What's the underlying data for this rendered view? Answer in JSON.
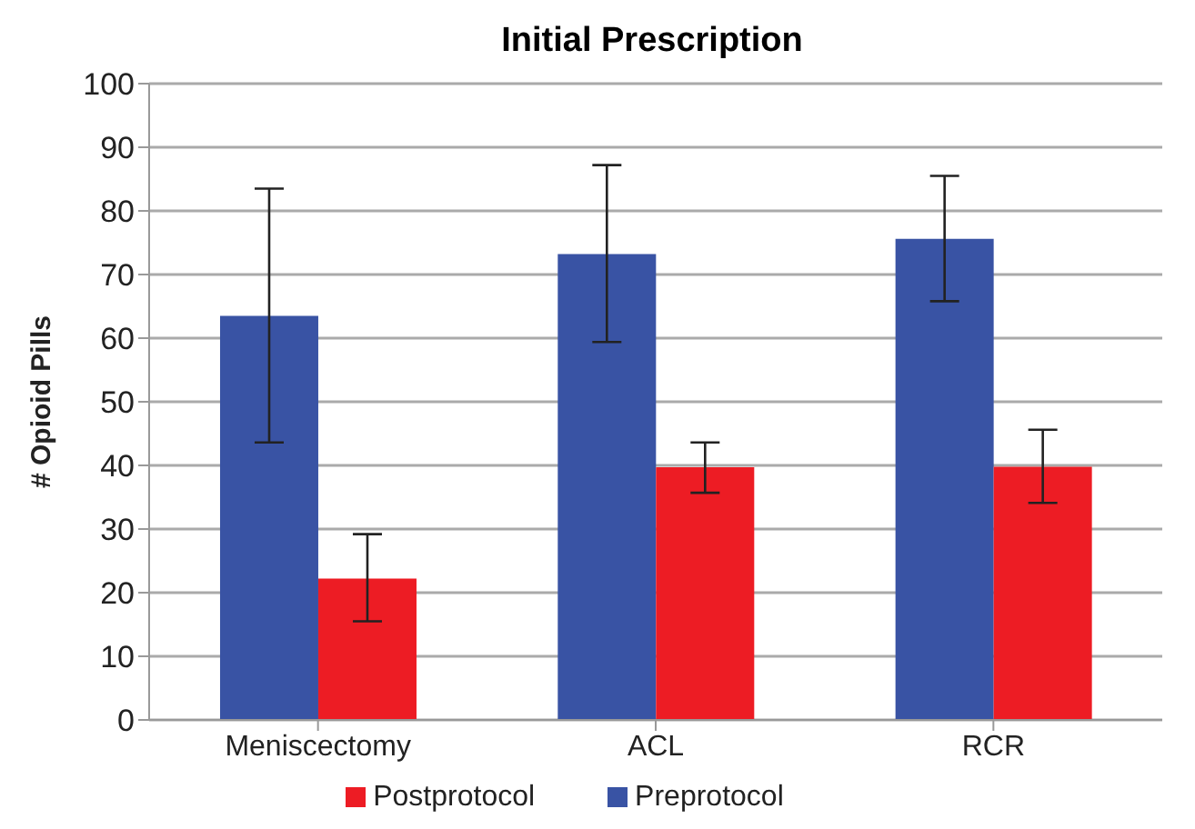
{
  "chart_data": {
    "type": "bar",
    "title": "Initial Prescription",
    "ylabel": "# Opioid Pills",
    "categories": [
      "Meniscectomy",
      "ACL",
      "RCR"
    ],
    "series": [
      {
        "name": "Preprotocol",
        "color": "#3953a4",
        "values": [
          63.5,
          73.2,
          75.6
        ],
        "errors": [
          [
            43.6,
            83.5
          ],
          [
            59.4,
            87.2
          ],
          [
            65.8,
            85.5
          ]
        ]
      },
      {
        "name": "Postprotocol",
        "color": "#ed1c24",
        "values": [
          22.2,
          39.7,
          39.8
        ],
        "errors": [
          [
            15.5,
            29.2
          ],
          [
            35.7,
            43.6
          ],
          [
            34.1,
            45.6
          ]
        ]
      }
    ],
    "ylim": [
      0,
      100
    ],
    "yticks": [
      0,
      10,
      20,
      30,
      40,
      50,
      60,
      70,
      80,
      90,
      100
    ],
    "grid": "y",
    "legend": "bottom"
  }
}
